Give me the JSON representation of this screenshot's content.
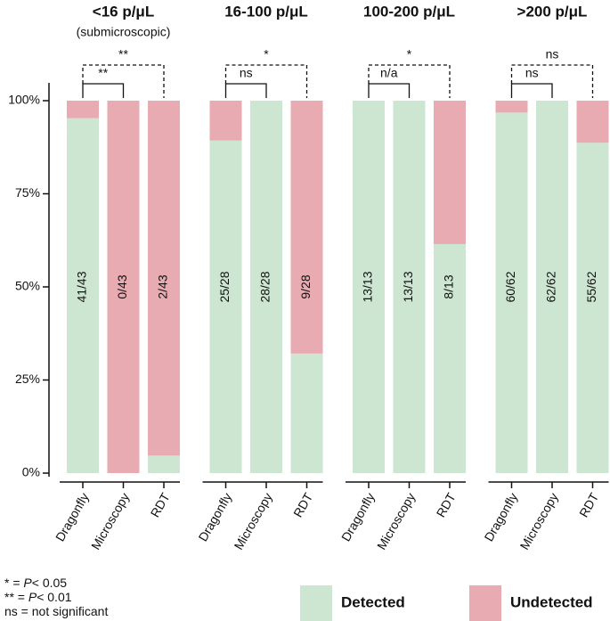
{
  "chart_data": [
    {
      "type": "bar",
      "stacked": true,
      "title": "<16 p/μL",
      "subtitle": "(submicroscopic)",
      "categories": [
        "Dragonfly",
        "Microscopy",
        "RDT"
      ],
      "series": [
        {
          "name": "Detected",
          "color": "#cde6d1",
          "values": [
            95.3,
            0,
            4.7
          ],
          "value_labels": [
            "41/43",
            "0/43",
            "2/43"
          ]
        },
        {
          "name": "Undetected",
          "color": "#e7abb1",
          "values": [
            4.7,
            100,
            95.3
          ]
        }
      ],
      "ylim": [
        0,
        100
      ],
      "yticks": [
        {
          "value": 0,
          "label": "0%"
        },
        {
          "value": 25,
          "label": "25%"
        },
        {
          "value": 50,
          "label": "50%"
        },
        {
          "value": 75,
          "label": "75%"
        },
        {
          "value": 100,
          "label": "100%"
        }
      ],
      "comparisons": [
        {
          "from": "Dragonfly",
          "to": "Microscopy",
          "label": "**",
          "dashed": false
        },
        {
          "from": "Dragonfly",
          "to": "RDT",
          "label": "**",
          "dashed": true
        }
      ]
    },
    {
      "type": "bar",
      "stacked": true,
      "title": "16-100 p/μL",
      "categories": [
        "Dragonfly",
        "Microscopy",
        "RDT"
      ],
      "series": [
        {
          "name": "Detected",
          "color": "#cde6d1",
          "values": [
            89.3,
            100,
            32.1
          ],
          "value_labels": [
            "25/28",
            "28/28",
            "9/28"
          ]
        },
        {
          "name": "Undetected",
          "color": "#e7abb1",
          "values": [
            10.7,
            0,
            67.9
          ]
        }
      ],
      "ylim": [
        0,
        100
      ],
      "comparisons": [
        {
          "from": "Dragonfly",
          "to": "Microscopy",
          "label": "ns",
          "dashed": false
        },
        {
          "from": "Dragonfly",
          "to": "RDT",
          "label": "*",
          "dashed": true
        }
      ]
    },
    {
      "type": "bar",
      "stacked": true,
      "title": "100-200 p/μL",
      "categories": [
        "Dragonfly",
        "Microscopy",
        "RDT"
      ],
      "series": [
        {
          "name": "Detected",
          "color": "#cde6d1",
          "values": [
            100,
            100,
            61.5
          ],
          "value_labels": [
            "13/13",
            "13/13",
            "8/13"
          ]
        },
        {
          "name": "Undetected",
          "color": "#e7abb1",
          "values": [
            0,
            0,
            38.5
          ]
        }
      ],
      "ylim": [
        0,
        100
      ],
      "comparisons": [
        {
          "from": "Dragonfly",
          "to": "Microscopy",
          "label": "n/a",
          "dashed": false
        },
        {
          "from": "Dragonfly",
          "to": "RDT",
          "label": "*",
          "dashed": true
        }
      ]
    },
    {
      "type": "bar",
      "stacked": true,
      "title": ">200 p/μL",
      "categories": [
        "Dragonfly",
        "Microscopy",
        "RDT"
      ],
      "series": [
        {
          "name": "Detected",
          "color": "#cde6d1",
          "values": [
            96.8,
            100,
            88.7
          ],
          "value_labels": [
            "60/62",
            "62/62",
            "55/62"
          ]
        },
        {
          "name": "Undetected",
          "color": "#e7abb1",
          "values": [
            3.2,
            0,
            11.3
          ]
        }
      ],
      "ylim": [
        0,
        100
      ],
      "comparisons": [
        {
          "from": "Dragonfly",
          "to": "Microscopy",
          "label": "ns",
          "dashed": false
        },
        {
          "from": "Dragonfly",
          "to": "RDT",
          "label": "ns",
          "dashed": true
        }
      ]
    }
  ],
  "notes": [
    {
      "prefix": "* = ",
      "italic": "P",
      "suffix": "< 0.05"
    },
    {
      "prefix": "** = ",
      "italic": "P",
      "suffix": "< 0.01"
    },
    {
      "prefix": "ns = not significant"
    }
  ]
}
